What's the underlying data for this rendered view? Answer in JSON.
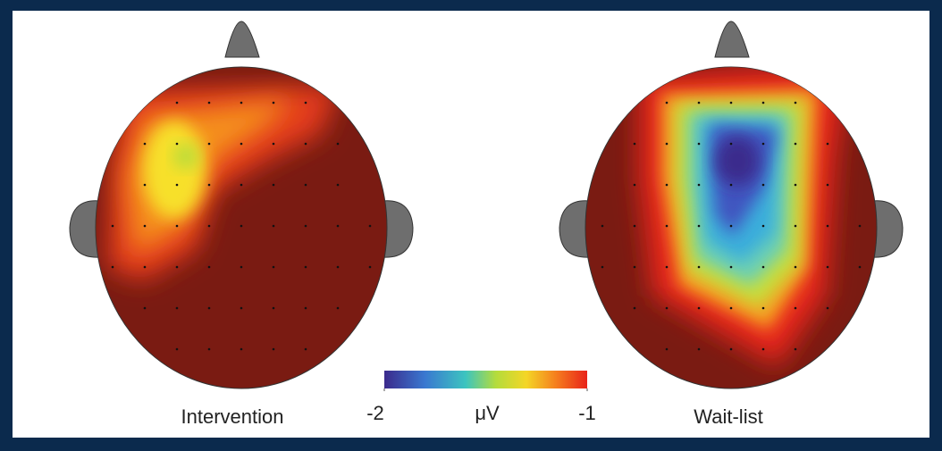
{
  "panels": [
    {
      "label": "Intervention"
    },
    {
      "label": "Wait-list"
    }
  ],
  "colorbar": {
    "unit": "μV",
    "range": [
      -2,
      -1
    ],
    "ticks": [
      -2,
      -1
    ]
  }
}
